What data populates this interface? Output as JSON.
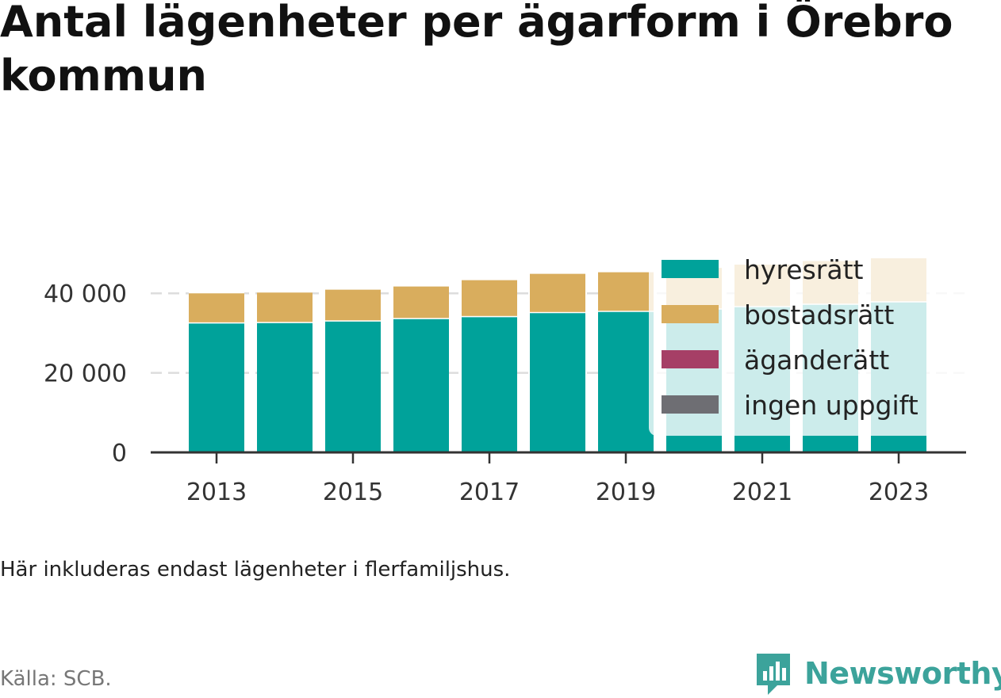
{
  "title": "Antal lägenheter per ägarform i Örebro kommun",
  "note": "Här inkluderas endast lägenheter i flerfamiljshus.",
  "source": "Källa: SCB.",
  "brand": "Newsworthy",
  "colors": {
    "hyresratt": "#00a29a",
    "bostadsratt": "#d9ad5d",
    "aganderatt": "#a63f66",
    "ingen_uppgift": "#6e6e73",
    "brand": "#3ca39b"
  },
  "chart_data": {
    "type": "bar",
    "stacked": true,
    "categories": [
      "2013",
      "2014",
      "2015",
      "2016",
      "2017",
      "2018",
      "2019",
      "2020",
      "2021",
      "2022",
      "2023"
    ],
    "x_tick_labels": [
      "2013",
      "2015",
      "2017",
      "2019",
      "2021",
      "2023"
    ],
    "y_ticks": [
      0,
      20000,
      40000
    ],
    "y_tick_labels": [
      "0",
      "20 000",
      "40 000"
    ],
    "ylim": [
      0,
      50000
    ],
    "grid": true,
    "legend_position": "top-right",
    "series": [
      {
        "name": "hyresrätt",
        "color": "#00a29a",
        "values": [
          32700,
          32800,
          33200,
          33800,
          34300,
          35300,
          35600,
          36200,
          36800,
          37400,
          38000
        ]
      },
      {
        "name": "bostadsrätt",
        "color": "#d9ad5d",
        "values": [
          7600,
          7700,
          8000,
          8200,
          9300,
          9900,
          10000,
          10500,
          10700,
          11000,
          11100
        ]
      },
      {
        "name": "äganderätt",
        "color": "#a63f66",
        "values": [
          0,
          0,
          0,
          0,
          0,
          0,
          0,
          0,
          0,
          0,
          0
        ]
      },
      {
        "name": "ingen uppgift",
        "color": "#6e6e73",
        "values": [
          0,
          0,
          0,
          0,
          0,
          0,
          0,
          0,
          0,
          0,
          0
        ]
      }
    ]
  }
}
